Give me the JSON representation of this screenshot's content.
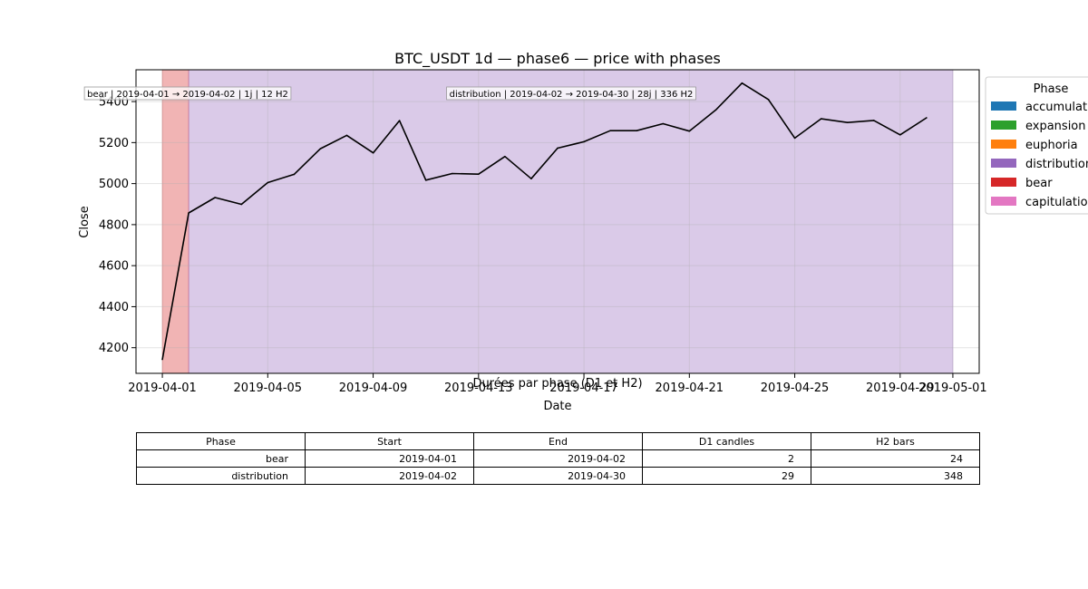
{
  "chart_data": {
    "type": "line",
    "title": "BTC_USDT 1d — phase6 — price with phases",
    "xlabel": "Date",
    "ylabel": "Close",
    "ylim": [
      4075,
      5555
    ],
    "xlim": [
      "2019-03-31",
      "2019-05-02"
    ],
    "x_ticks": [
      "2019-04-01",
      "2019-04-05",
      "2019-04-09",
      "2019-04-13",
      "2019-04-17",
      "2019-04-21",
      "2019-04-25",
      "2019-04-29",
      "2019-05-01"
    ],
    "y_ticks": [
      4200,
      4400,
      4600,
      4800,
      5000,
      5200,
      5400
    ],
    "grid": true,
    "series": [
      {
        "color": "#000000",
        "x": [
          "2019-04-01",
          "2019-04-02",
          "2019-04-03",
          "2019-04-04",
          "2019-04-05",
          "2019-04-06",
          "2019-04-07",
          "2019-04-08",
          "2019-04-09",
          "2019-04-10",
          "2019-04-11",
          "2019-04-12",
          "2019-04-13",
          "2019-04-14",
          "2019-04-15",
          "2019-04-16",
          "2019-04-17",
          "2019-04-18",
          "2019-04-19",
          "2019-04-20",
          "2019-04-21",
          "2019-04-22",
          "2019-04-23",
          "2019-04-24",
          "2019-04-25",
          "2019-04-26",
          "2019-04-27",
          "2019-04-28",
          "2019-04-29",
          "2019-04-30"
        ],
        "y": [
          4143,
          4857,
          4932,
          4899,
          5005,
          5045,
          5170,
          5235,
          5150,
          5307,
          5017,
          5049,
          5046,
          5132,
          5024,
          5173,
          5204,
          5258,
          5258,
          5292,
          5256,
          5359,
          5490,
          5410,
          5222,
          5316,
          5298,
          5308,
          5238,
          5321
        ]
      }
    ],
    "phases": [
      {
        "name": "bear",
        "start": "2019-04-01",
        "end": "2019-04-02",
        "color": "#d62728",
        "label": "bear | 2019-04-01 → 2019-04-02 | 1j | 12 H2"
      },
      {
        "name": "distribution",
        "start": "2019-04-02",
        "end": "2019-04-30",
        "color": "#9467bd",
        "label": "distribution | 2019-04-02 → 2019-04-30 | 28j | 336 H2"
      }
    ],
    "legend": {
      "title": "Phase",
      "placement": "outside-right",
      "entries": [
        {
          "label": "accumulation",
          "color": "#1f77b4"
        },
        {
          "label": "expansion",
          "color": "#2ca02c"
        },
        {
          "label": "euphoria",
          "color": "#ff7f0e"
        },
        {
          "label": "distribution",
          "color": "#9467bd"
        },
        {
          "label": "bear",
          "color": "#d62728"
        },
        {
          "label": "capitulation",
          "color": "#e377c2"
        }
      ]
    }
  },
  "table": {
    "title": "Durées par phase (D1 et H2)",
    "headers": [
      "Phase",
      "Start",
      "End",
      "D1 candles",
      "H2 bars"
    ],
    "rows": [
      [
        "bear",
        "2019-04-01",
        "2019-04-02",
        "2",
        "24"
      ],
      [
        "distribution",
        "2019-04-02",
        "2019-04-30",
        "29",
        "348"
      ]
    ]
  }
}
